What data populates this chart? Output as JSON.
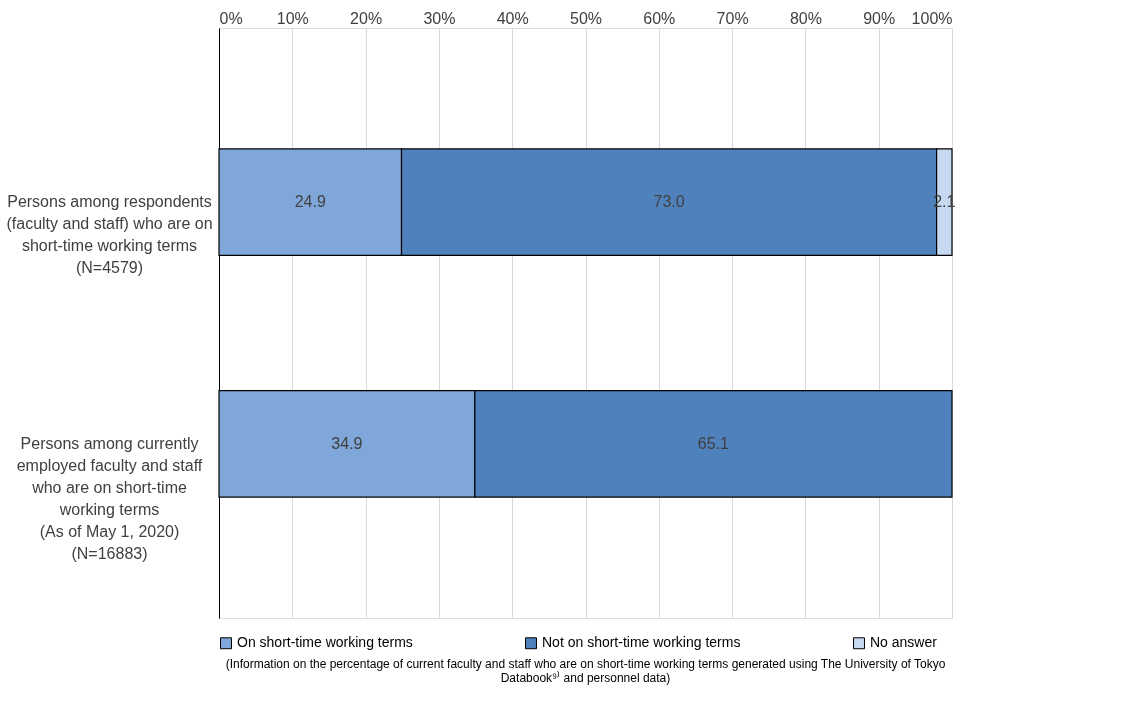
{
  "chart_data": {
    "type": "bar",
    "orientation": "horizontal",
    "stacked": true,
    "categories": [
      "Persons among respondents\n(faculty and staff) who are on\nshort-time working terms\n(N=4579)",
      "Persons among currently\nemployed faculty and staff\nwho are on short-time\nworking terms\n(As of May 1, 2020)\n(N=16883)"
    ],
    "series": [
      {
        "name": "On short-time working terms",
        "color": "#7fa7d9",
        "values": [
          24.9,
          34.9
        ],
        "value_labels": [
          "24.9",
          "34.9"
        ]
      },
      {
        "name": "Not on short-time working terms",
        "color": "#4f81bd",
        "values": [
          73.0,
          65.1
        ],
        "value_labels": [
          "73.0",
          "65.1"
        ]
      },
      {
        "name": "No answer",
        "color": "#c6d9f1",
        "values": [
          2.1,
          null
        ],
        "value_labels": [
          "2.1",
          null
        ]
      }
    ],
    "xlim": [
      0,
      100
    ],
    "xticks": [
      {
        "value": 0,
        "label": "0%"
      },
      {
        "value": 10,
        "label": "10%"
      },
      {
        "value": 20,
        "label": "20%"
      },
      {
        "value": 30,
        "label": "30%"
      },
      {
        "value": 40,
        "label": "40%"
      },
      {
        "value": 50,
        "label": "50%"
      },
      {
        "value": 60,
        "label": "60%"
      },
      {
        "value": 70,
        "label": "70%"
      },
      {
        "value": 80,
        "label": "80%"
      },
      {
        "value": 90,
        "label": "90%"
      },
      {
        "value": 100,
        "label": "100%"
      }
    ],
    "grid": "x",
    "legend": "bottom",
    "annotations": [
      "(Information on the percentage of current faculty and staff who are on short-time working terms generated using The University of Tokyo Databook⁹⁾ and personnel data)"
    ]
  }
}
